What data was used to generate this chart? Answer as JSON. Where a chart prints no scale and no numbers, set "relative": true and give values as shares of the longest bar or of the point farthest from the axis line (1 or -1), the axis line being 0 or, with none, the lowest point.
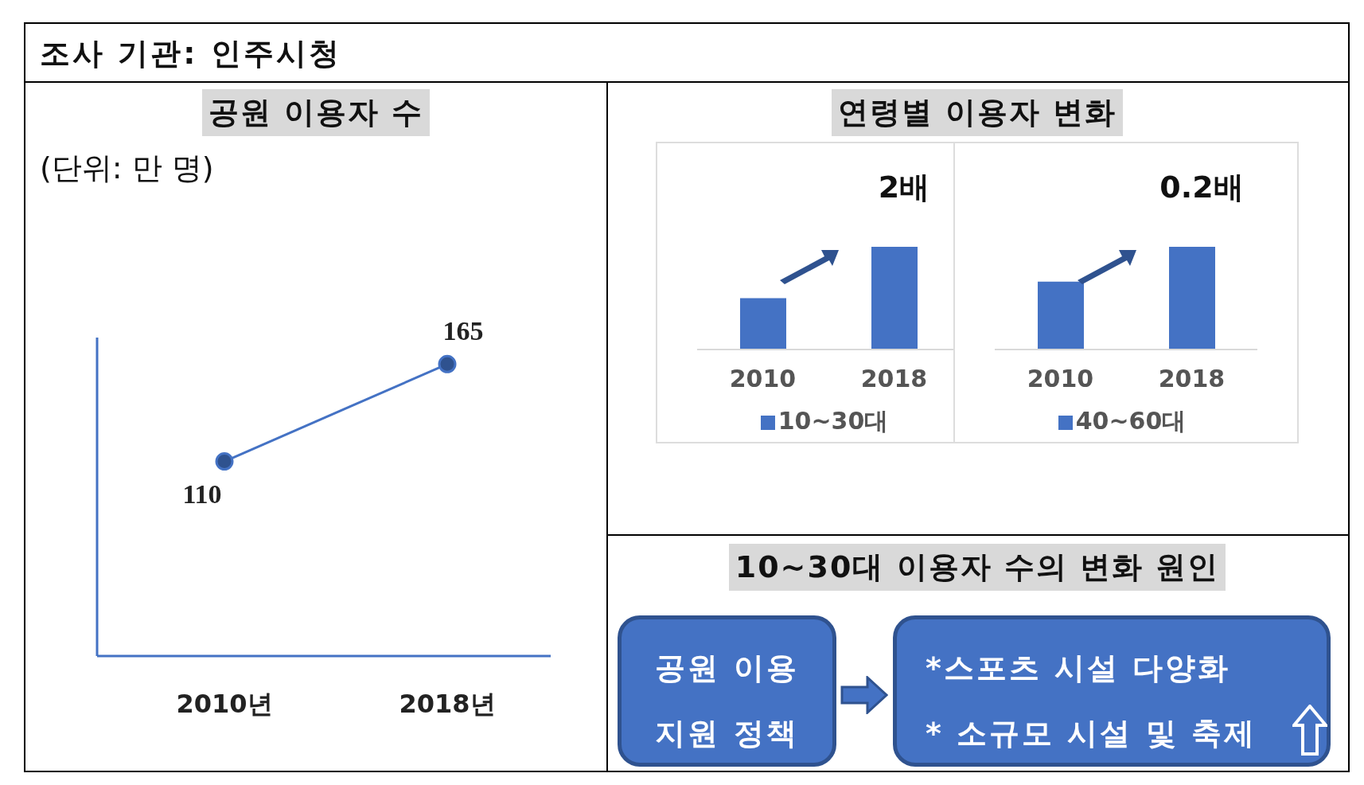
{
  "chart_data": [
    {
      "type": "other",
      "title": "조사 기관: 인주시청"
    },
    {
      "type": "line",
      "title": "공원 이용자 수",
      "subtitle": "(단위: 만 명)",
      "categories": [
        "2010년",
        "2018년"
      ],
      "values": [
        110,
        165
      ],
      "color": "#4472c4",
      "data_labels": true,
      "marker": "circle",
      "line_style": "solid",
      "tick_labels": "x"
    },
    {
      "type": "bar",
      "title": "연령별 이용자 변화",
      "categories": [
        "2010",
        "2018"
      ],
      "relative": true,
      "series": [
        {
          "name": "10~30대",
          "color": "#4472c4",
          "values": [
            0.5,
            1
          ]
        }
      ],
      "annotations": [
        "2배"
      ],
      "legend": "bottom"
    },
    {
      "type": "bar",
      "categories": [
        "2010",
        "2018"
      ],
      "relative": true,
      "series": [
        {
          "name": "40~60대",
          "color": "#4472c4",
          "values": [
            0.66,
            1
          ]
        }
      ],
      "annotations": [
        "0.2배"
      ],
      "legend": "bottom"
    },
    {
      "type": "other",
      "title": "10~30대 이용자 수의 변화 원인",
      "annotations": [
        "공원 이용 지원 정책",
        "*스포츠 시설 다양화",
        "* 소규모 시설 및 축제"
      ]
    }
  ]
}
